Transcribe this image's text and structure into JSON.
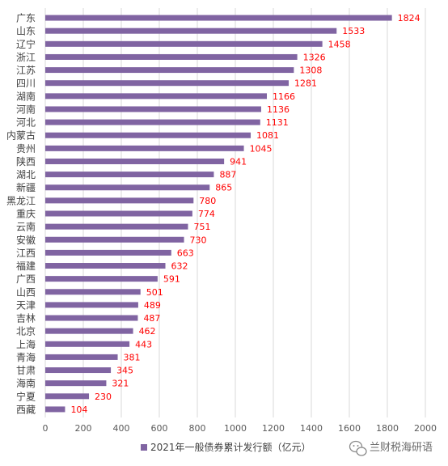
{
  "colors": {
    "bar": "#8064a2",
    "value_label": "#ff0000",
    "grid": "#d9d9d9",
    "text": "#404040"
  },
  "chart_data": {
    "type": "bar",
    "orientation": "horizontal",
    "categories": [
      "广东",
      "山东",
      "辽宁",
      "浙江",
      "江苏",
      "四川",
      "湖南",
      "河南",
      "河北",
      "内蒙古",
      "贵州",
      "陕西",
      "湖北",
      "新疆",
      "黑龙江",
      "重庆",
      "云南",
      "安徽",
      "江西",
      "福建",
      "广西",
      "山西",
      "天津",
      "吉林",
      "北京",
      "上海",
      "青海",
      "甘肃",
      "海南",
      "宁夏",
      "西藏"
    ],
    "series": [
      {
        "name": "2021年一般债券累计发行额（亿元）",
        "values": [
          1824,
          1533,
          1458,
          1326,
          1308,
          1281,
          1166,
          1136,
          1131,
          1081,
          1045,
          941,
          887,
          865,
          780,
          774,
          751,
          730,
          663,
          632,
          591,
          501,
          489,
          487,
          462,
          443,
          381,
          345,
          321,
          230,
          104
        ]
      }
    ],
    "xlim": [
      0,
      2000
    ],
    "xticks": [
      0,
      200,
      400,
      600,
      800,
      1000,
      1200,
      1400,
      1600,
      1800,
      2000
    ],
    "grid": true,
    "legend_position": "bottom",
    "data_labels": true
  },
  "watermark": {
    "text": "兰财税海研语",
    "icon": "wechat-icon"
  }
}
